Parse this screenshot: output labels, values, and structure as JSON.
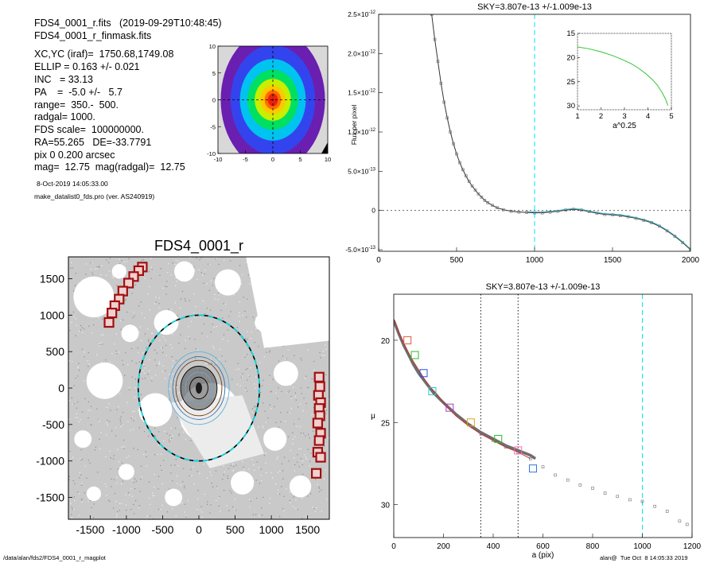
{
  "header": {
    "line1": "FDS4_0001_r.fits   (2019-09-29T10:48:45)",
    "line2": "FDS4_0001_r_finmask.fits",
    "lines": [
      "XC,YC (iraf)=  1750.68,1749.08",
      "ELLIP = 0.163 +/- 0.021",
      "INC   = 33.13",
      "PA    =  -5.0 +/-   5.7",
      "range=  350.-  500.",
      "radgal= 1000.",
      "FDS scale=  100000000.",
      "RA=55.265   DE=-33.7791",
      "pix 0 0.200 arcsec",
      "mag=  12.75  mag(radgal)=  12.75"
    ],
    "date": "8-Oct-2019 14:05:33.00",
    "program": "make_datalist0_fds.pro (ver. AS240919)"
  },
  "footer": {
    "path": "/data/alan/fds2/FDS4_0001_r_magplot",
    "stamp": "alan@  Tue Oct  8 14:05:33 2019"
  },
  "colors": {
    "cyan_dash": "#00e5ee",
    "grey_data": "#707070",
    "mask_red": "#a01010",
    "sky_line": "#2a6fb0"
  },
  "chart_data": [
    {
      "id": "contour",
      "type": "heatmap",
      "title": "",
      "xlim": [
        -10,
        10
      ],
      "ylim": [
        -10,
        10
      ],
      "xticks": [
        "-10",
        "-5",
        "0",
        "5",
        "10"
      ],
      "yticks": [
        "10",
        "5",
        "0",
        "-5",
        "-10"
      ],
      "levels": [
        {
          "rx": 9.5,
          "ry": 13.0,
          "color": "#6a1fb0"
        },
        {
          "rx": 7.7,
          "ry": 10.2,
          "color": "#3344ee"
        },
        {
          "rx": 6.0,
          "ry": 7.6,
          "color": "#00c3f0"
        },
        {
          "rx": 4.6,
          "ry": 5.6,
          "color": "#00e060"
        },
        {
          "rx": 3.3,
          "ry": 3.9,
          "color": "#c8ee00"
        },
        {
          "rx": 2.3,
          "ry": 2.7,
          "color": "#ffc800"
        },
        {
          "rx": 1.5,
          "ry": 1.8,
          "color": "#ff6a00"
        },
        {
          "rx": 0.9,
          "ry": 1.2,
          "color": "#e8200c"
        }
      ]
    },
    {
      "id": "sky-profile",
      "type": "scatter",
      "title": "SKY=3.807e-13 +/-1.009e-13",
      "xlabel": "",
      "ylabel": "Flux per pixel",
      "xlim": [
        0,
        2000
      ],
      "ylim": [
        -5.2e-13,
        2.5e-12
      ],
      "xticks": [
        "0",
        "500",
        "1000",
        "1500",
        "2000"
      ],
      "yticks": [
        {
          "v": 2.5e-12,
          "m": "2.5",
          "e": "-12"
        },
        {
          "v": 2e-12,
          "m": "2.0",
          "e": "-12"
        },
        {
          "v": 1.5e-12,
          "m": "1.5",
          "e": "-12"
        },
        {
          "v": 1e-12,
          "m": "1.0",
          "e": "-12"
        },
        {
          "v": 5e-13,
          "m": "5.0",
          "e": "-13"
        },
        {
          "v": 0,
          "m": "0",
          "e": ""
        },
        {
          "v": -5e-13,
          "m": "-5.0",
          "e": "-13"
        }
      ],
      "vline": 1000,
      "series": [
        {
          "x": [
            340,
            360,
            380,
            400,
            420,
            440,
            460,
            480,
            500,
            520,
            540,
            560,
            580,
            600,
            620,
            640,
            660,
            680,
            700,
            730,
            760,
            800,
            850,
            900,
            950,
            1000,
            1050,
            1100,
            1150,
            1200,
            1250,
            1300,
            1350,
            1400,
            1450,
            1500,
            1550,
            1600,
            1650,
            1700,
            1750,
            1800,
            1850,
            1900,
            1950,
            2000
          ],
          "y": [
            2.5e-12,
            2.18e-12,
            1.9e-12,
            1.62e-12,
            1.38e-12,
            1.18e-12,
            1e-12,
            8.5e-13,
            7.2e-13,
            6.1e-13,
            5.2e-13,
            4.4e-13,
            3.7e-13,
            3.1e-13,
            2.6e-13,
            2.1e-13,
            1.7e-13,
            1.3e-13,
            1e-13,
            6.5e-14,
            3.5e-14,
            1e-14,
            -1e-14,
            -2e-14,
            -2.5e-14,
            -3e-14,
            -3e-14,
            -2e-14,
            -1e-14,
            5e-15,
            1.5e-14,
            5e-15,
            -1.5e-14,
            -3.5e-14,
            -5e-14,
            -5.5e-14,
            -6.5e-14,
            -8e-14,
            -1e-13,
            -1.25e-13,
            -1.55e-13,
            -2e-13,
            -2.6e-13,
            -3.3e-13,
            -4.1e-13,
            -5e-13
          ]
        }
      ],
      "inset": {
        "xlabel": "a^0.25",
        "xlim": [
          1,
          5
        ],
        "ylim": [
          15,
          30.8
        ],
        "xticks": [
          "1",
          "2",
          "3",
          "4",
          "5"
        ],
        "yticks": [
          "15",
          "20",
          "25",
          "30"
        ],
        "x": [
          1.0,
          1.5,
          2.0,
          2.5,
          3.0,
          3.3,
          3.6,
          3.9,
          4.2,
          4.4,
          4.6,
          4.75,
          4.85
        ],
        "y": [
          17.8,
          18.2,
          18.8,
          19.6,
          20.6,
          21.3,
          22.2,
          23.3,
          24.6,
          25.7,
          27.2,
          28.6,
          29.9
        ]
      }
    },
    {
      "id": "image-panel",
      "type": "scatter",
      "title": "FDS4_0001_r",
      "xlim": [
        -1800,
        1800
      ],
      "ylim": [
        -1800,
        1800
      ],
      "xticks": [
        "-1500",
        "-1000",
        "-500",
        "0",
        "500",
        "1000",
        "1500"
      ],
      "yticks": [
        "1500",
        "1000",
        "500",
        "0",
        "-500",
        "-1000",
        "-1500"
      ],
      "masked_sources": {
        "x": [
          -780,
          -830,
          -900,
          -970,
          -1050,
          -1100,
          -1160,
          -1200,
          -1240,
          1660,
          1670,
          1650,
          1680,
          1660,
          1670,
          1640,
          1680,
          1660,
          1640,
          1680,
          1620
        ],
        "y": [
          1660,
          1610,
          1530,
          1440,
          1330,
          1220,
          1130,
          1030,
          900,
          150,
          20,
          -100,
          -200,
          -280,
          -380,
          -480,
          -620,
          -720,
          -880,
          -950,
          -1170
        ]
      },
      "ellipse_a": 1000,
      "ellipse_ell": 0.163
    },
    {
      "id": "surface-brightness",
      "type": "line",
      "title": "SKY=3.807e-13 +/-1.009e-13",
      "xlabel": "a (pix)",
      "ylabel": "μ",
      "xlim": [
        0,
        1200
      ],
      "ylim": [
        32.0,
        17.2
      ],
      "xticks": [
        "0",
        "200",
        "400",
        "600",
        "800",
        "1000",
        "1200"
      ],
      "yticks": [
        "20",
        "25",
        "30"
      ],
      "vlines_dotted": [
        350,
        500
      ],
      "vline_dashed": 1000,
      "series": [
        {
          "x": [
            0,
            20,
            40,
            60,
            80,
            100,
            130,
            160,
            200,
            250,
            300,
            350,
            400,
            450,
            500,
            550,
            570
          ],
          "y": [
            18.8,
            19.6,
            20.3,
            20.9,
            21.5,
            22.0,
            22.6,
            23.2,
            23.8,
            24.5,
            25.1,
            25.6,
            26.0,
            26.4,
            26.7,
            27.0,
            27.2
          ]
        },
        {
          "x": [
            0,
            25,
            50,
            75,
            100,
            125,
            150,
            175,
            200,
            250,
            300,
            350,
            400,
            450,
            500,
            550,
            600,
            650,
            700,
            750,
            800,
            850,
            900,
            950,
            1000,
            1050,
            1100,
            1150,
            1180
          ],
          "y": [
            18.7,
            19.7,
            20.5,
            21.2,
            21.8,
            22.4,
            22.9,
            23.3,
            23.8,
            24.6,
            25.2,
            25.7,
            26.1,
            26.5,
            26.8,
            27.2,
            27.7,
            28.2,
            28.5,
            28.8,
            29.0,
            29.3,
            29.5,
            29.7,
            29.8,
            30.1,
            30.4,
            31.0,
            31.2
          ]
        }
      ],
      "markers": [
        {
          "x": 55,
          "y": 20.0,
          "color": "#e0553a"
        },
        {
          "x": 85,
          "y": 20.9,
          "color": "#2bbd2b"
        },
        {
          "x": 120,
          "y": 22.0,
          "color": "#2a55dd"
        },
        {
          "x": 155,
          "y": 23.1,
          "color": "#22c8c8"
        },
        {
          "x": 225,
          "y": 24.1,
          "color": "#a040c0"
        },
        {
          "x": 310,
          "y": 25.0,
          "color": "#e0a020"
        },
        {
          "x": 420,
          "y": 26.0,
          "color": "#2bbd2b"
        },
        {
          "x": 500,
          "y": 26.7,
          "color": "#ff69b4"
        },
        {
          "x": 560,
          "y": 27.8,
          "color": "#2a78dd"
        }
      ]
    }
  ]
}
